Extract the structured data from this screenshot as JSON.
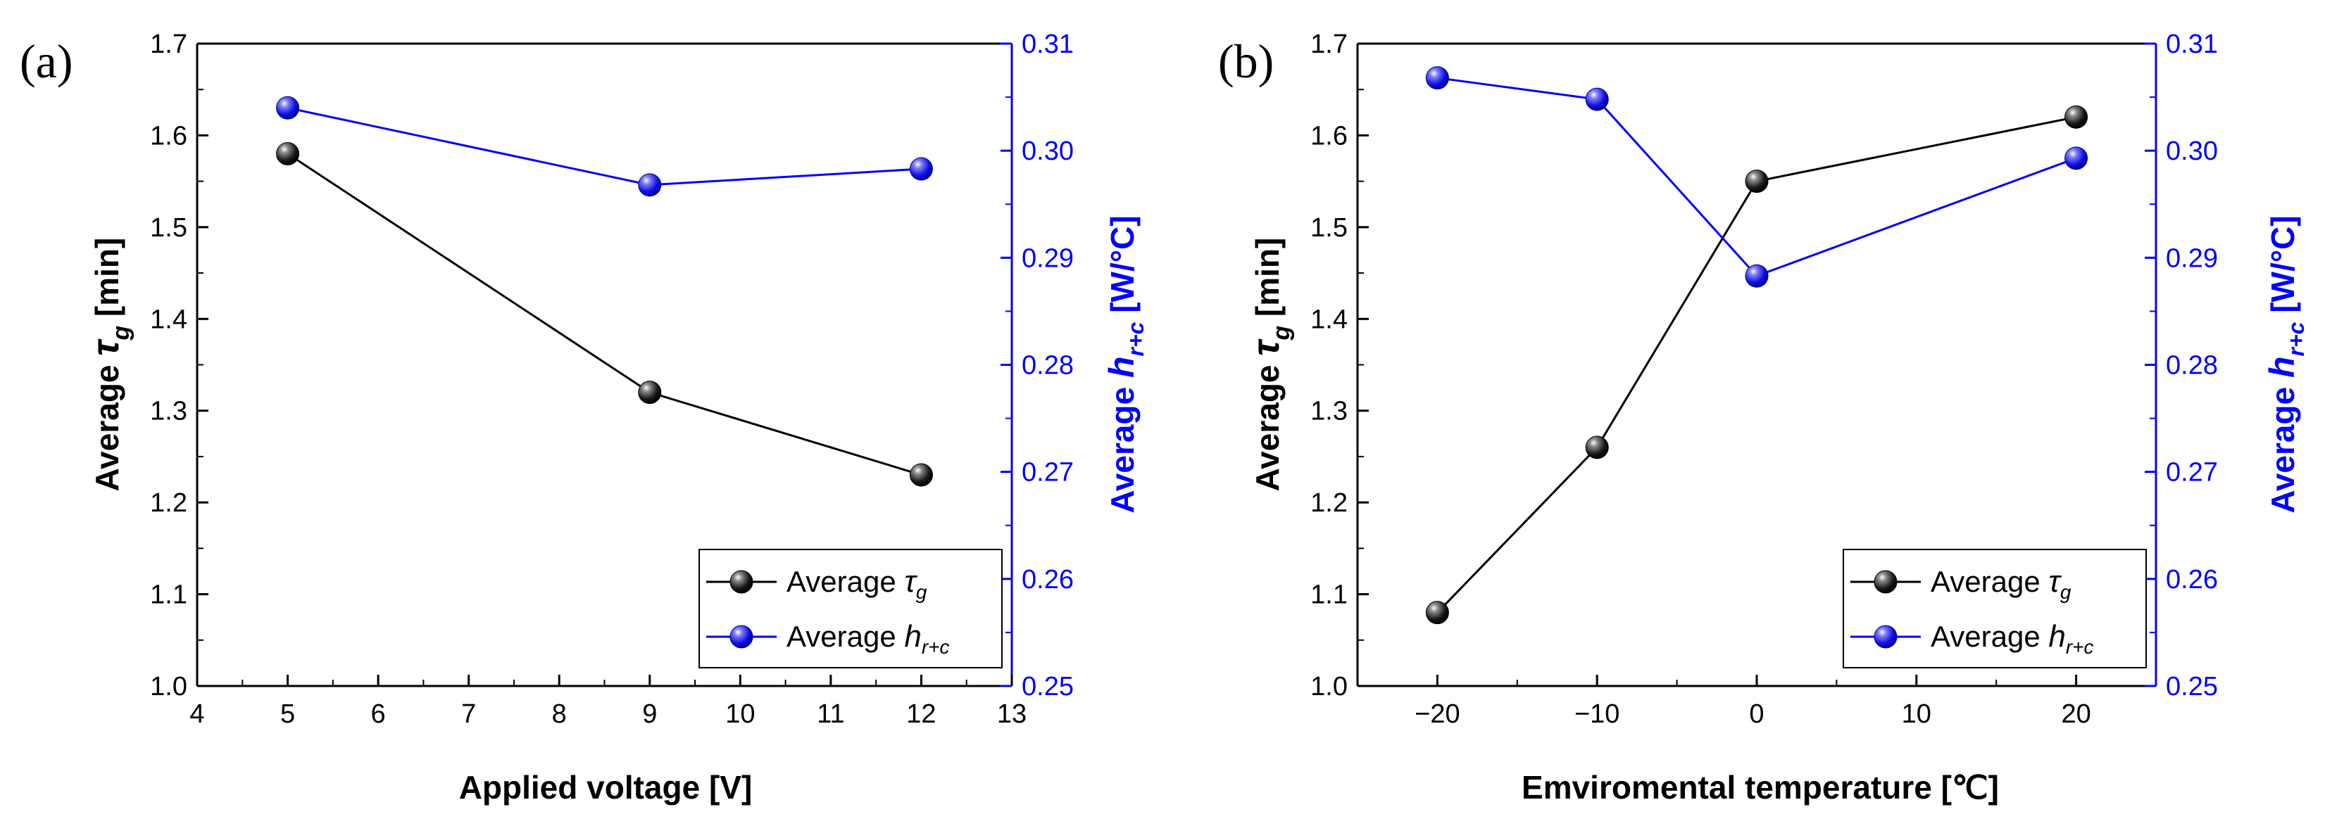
{
  "chart_data": [
    {
      "type": "line",
      "panel_label": "(a)",
      "xlabel": "Applied voltage [V]",
      "ylabel_left": {
        "text": "Average ",
        "sym": "τ",
        "sub": "g",
        "unit": " [min]"
      },
      "ylabel_right": {
        "text": "Average ",
        "sym": "h",
        "sub": "r+c",
        "unit": " [W/°C]"
      },
      "xlim": [
        4,
        13
      ],
      "ylim_left": [
        1.0,
        1.7
      ],
      "ylim_right": [
        0.25,
        0.31
      ],
      "xticks": [
        4,
        5,
        6,
        7,
        8,
        9,
        10,
        11,
        12,
        13
      ],
      "xtick_labels": [
        "4",
        "5",
        "6",
        "7",
        "8",
        "9",
        "10",
        "11",
        "12",
        "13"
      ],
      "yticks_left": [
        1.0,
        1.1,
        1.2,
        1.3,
        1.4,
        1.5,
        1.6,
        1.7
      ],
      "ytick_labels_left": [
        "1.0",
        "1.1",
        "1.2",
        "1.3",
        "1.4",
        "1.5",
        "1.6",
        "1.7"
      ],
      "yticks_right": [
        0.25,
        0.26,
        0.27,
        0.28,
        0.29,
        0.3,
        0.31
      ],
      "ytick_labels_right": [
        "0.25",
        "0.26",
        "0.27",
        "0.28",
        "0.29",
        "0.30",
        "0.31"
      ],
      "legend_position": "bottom-right",
      "series": [
        {
          "name": {
            "text": "Average ",
            "sym": "τ",
            "sub": "g"
          },
          "axis": "left",
          "color": "#000000",
          "x": [
            5,
            9,
            12
          ],
          "values": [
            1.58,
            1.32,
            1.23
          ]
        },
        {
          "name": {
            "text": "Average ",
            "sym": "h",
            "sub": "r+c"
          },
          "axis": "right",
          "color": "#0000ff",
          "x": [
            5,
            9,
            12
          ],
          "values": [
            0.304,
            0.2968,
            0.2983
          ]
        }
      ]
    },
    {
      "type": "line",
      "panel_label": "(b)",
      "xlabel": "Emviromental temperature [℃]",
      "ylabel_left": {
        "text": "Average ",
        "sym": "τ",
        "sub": "g",
        "unit": " [min]"
      },
      "ylabel_right": {
        "text": "Average ",
        "sym": "h",
        "sub": "r+c",
        "unit": " [W/°C]"
      },
      "xlim": [
        -25,
        25
      ],
      "ylim_left": [
        1.0,
        1.7
      ],
      "ylim_right": [
        0.25,
        0.31
      ],
      "xticks": [
        -20,
        -10,
        0,
        10,
        20
      ],
      "xtick_labels": [
        "−20",
        "−10",
        "0",
        "10",
        "20"
      ],
      "yticks_left": [
        1.0,
        1.1,
        1.2,
        1.3,
        1.4,
        1.5,
        1.6,
        1.7
      ],
      "ytick_labels_left": [
        "1.0",
        "1.1",
        "1.2",
        "1.3",
        "1.4",
        "1.5",
        "1.6",
        "1.7"
      ],
      "yticks_right": [
        0.25,
        0.26,
        0.27,
        0.28,
        0.29,
        0.3,
        0.31
      ],
      "ytick_labels_right": [
        "0.25",
        "0.26",
        "0.27",
        "0.28",
        "0.29",
        "0.30",
        "0.31"
      ],
      "legend_position": "bottom-right",
      "series": [
        {
          "name": {
            "text": "Average ",
            "sym": "τ",
            "sub": "g"
          },
          "axis": "left",
          "color": "#000000",
          "x": [
            -20,
            -10,
            0,
            20
          ],
          "values": [
            1.08,
            1.26,
            1.55,
            1.62
          ]
        },
        {
          "name": {
            "text": "Average ",
            "sym": "h",
            "sub": "r+c"
          },
          "axis": "right",
          "color": "#0000ff",
          "x": [
            -20,
            -10,
            0,
            20
          ],
          "values": [
            0.3068,
            0.3048,
            0.2883,
            0.2993
          ]
        }
      ]
    }
  ]
}
